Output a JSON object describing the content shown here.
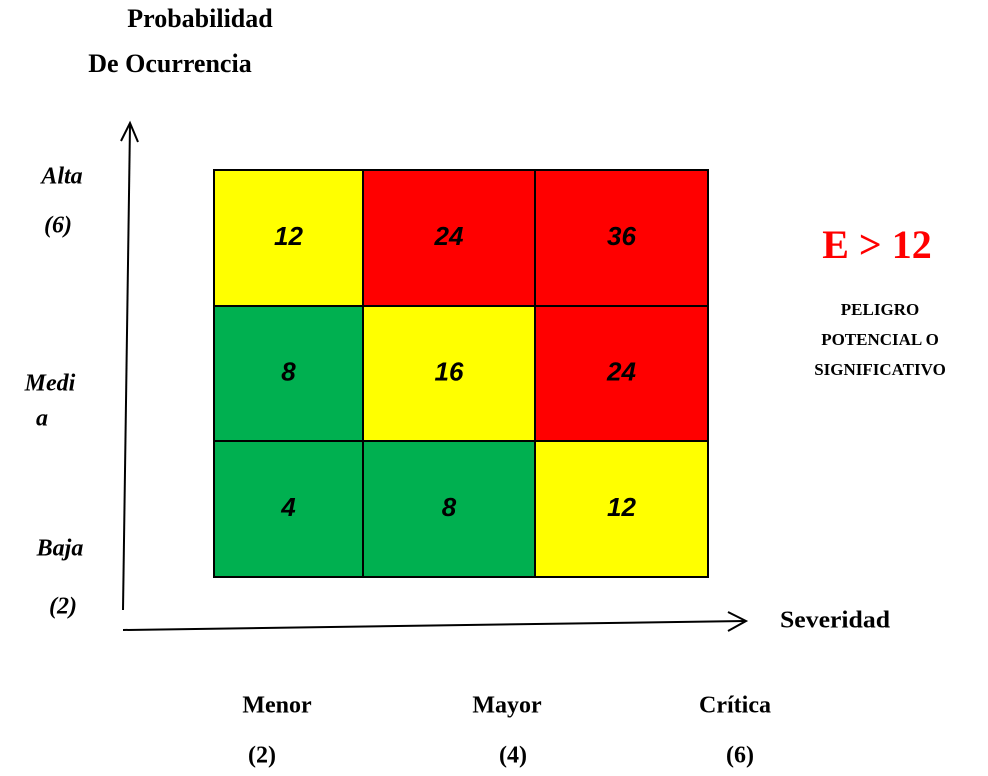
{
  "title_lines": [
    "Probabilidad",
    "De Ocurrencia"
  ],
  "rows": [
    {
      "label_lines": [
        "Alta",
        "(6)"
      ],
      "cells": [
        {
          "value": 12,
          "color": "#ffff00"
        },
        {
          "value": 24,
          "color": "#ff0000"
        },
        {
          "value": 36,
          "color": "#ff0000"
        }
      ]
    },
    {
      "label_lines": [
        "Medi",
        "a"
      ],
      "cells": [
        {
          "value": 8,
          "color": "#00b050"
        },
        {
          "value": 16,
          "color": "#ffff00"
        },
        {
          "value": 24,
          "color": "#ff0000"
        }
      ]
    },
    {
      "label_lines": [
        "Baja",
        "(2)"
      ],
      "cells": [
        {
          "value": 4,
          "color": "#00b050"
        },
        {
          "value": 8,
          "color": "#00b050"
        },
        {
          "value": 12,
          "color": "#ffff00"
        }
      ]
    }
  ],
  "columns": [
    {
      "name": "Menor",
      "level": "(2)"
    },
    {
      "name": "Mayor",
      "level": "(4)"
    },
    {
      "name": "Crítica",
      "level": "(6)"
    }
  ],
  "x_axis_label": "Severidad",
  "legend": {
    "formula": "E > 12",
    "description_lines": [
      "PELIGRO",
      "POTENCIAL O",
      "SIGNIFICATIVO"
    ]
  }
}
